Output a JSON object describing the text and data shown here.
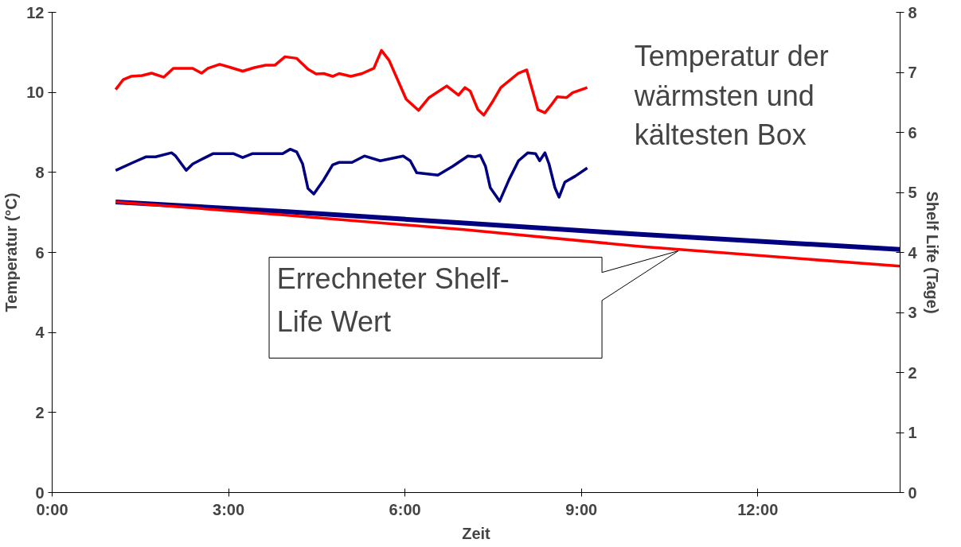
{
  "chart_data": {
    "type": "line",
    "xlabel": "Zeit",
    "ylabel": "Temperatur (°C)",
    "y2label": "Shelf Life (Tage)",
    "xlim": [
      0,
      14.42
    ],
    "xticks": [
      {
        "value": 0,
        "label": "0:00"
      },
      {
        "value": 3,
        "label": "3:00"
      },
      {
        "value": 6,
        "label": "6:00"
      },
      {
        "value": 9,
        "label": "9:00"
      },
      {
        "value": 12,
        "label": "12:00"
      }
    ],
    "ylim": [
      0,
      12
    ],
    "yticks": [
      0,
      2,
      4,
      6,
      8,
      10,
      12
    ],
    "y2lim": [
      0,
      8
    ],
    "y2ticks": [
      0,
      1,
      2,
      3,
      4,
      5,
      6,
      7,
      8
    ],
    "grid": false,
    "marker": "none",
    "line_style": "solid",
    "annotations": [
      "Temperatur der wärmsten und kältesten Box",
      "Errechneter Shelf-Life Wert"
    ],
    "series": [
      {
        "color": "#ff0000",
        "x": [
          1.08,
          1.21,
          1.34,
          1.53,
          1.69,
          1.9,
          2.06,
          2.39,
          2.54,
          2.65,
          2.85,
          3.04,
          3.24,
          3.44,
          3.63,
          3.79,
          3.96,
          4.16,
          4.35,
          4.49,
          4.62,
          4.77,
          4.88,
          5.08,
          5.27,
          5.47,
          5.6,
          5.73,
          6.02,
          6.23,
          6.41,
          6.71,
          6.91,
          7.02,
          7.11,
          7.24,
          7.34,
          7.5,
          7.63,
          7.93,
          8.07,
          8.18,
          8.26,
          8.38,
          8.49,
          8.59,
          8.75,
          8.85,
          9.1
        ],
        "values": [
          10.07,
          10.32,
          10.4,
          10.42,
          10.48,
          10.38,
          10.6,
          10.6,
          10.48,
          10.6,
          10.7,
          10.62,
          10.53,
          10.62,
          10.68,
          10.68,
          10.89,
          10.85,
          10.58,
          10.46,
          10.47,
          10.4,
          10.47,
          10.4,
          10.47,
          10.6,
          11.05,
          10.8,
          9.83,
          9.55,
          9.87,
          10.16,
          9.93,
          10.12,
          10.03,
          9.57,
          9.43,
          9.79,
          10.12,
          10.48,
          10.56,
          9.99,
          9.57,
          9.49,
          9.69,
          9.89,
          9.87,
          9.99,
          10.12
        ]
      },
      {
        "color": "#000080",
        "x": [
          1.08,
          1.38,
          1.6,
          1.76,
          2.03,
          2.1,
          2.28,
          2.39,
          2.52,
          2.74,
          3.08,
          3.24,
          3.41,
          3.92,
          4.05,
          4.16,
          4.26,
          4.35,
          4.45,
          4.62,
          4.77,
          4.88,
          5.1,
          5.31,
          5.58,
          5.97,
          6.09,
          6.2,
          6.56,
          6.81,
          7.07,
          7.2,
          7.28,
          7.37,
          7.45,
          7.61,
          7.77,
          7.93,
          8.09,
          8.22,
          8.29,
          8.38,
          8.45,
          8.55,
          8.62,
          8.72,
          8.9,
          9.1
        ],
        "values": [
          8.05,
          8.25,
          8.39,
          8.39,
          8.49,
          8.41,
          8.05,
          8.21,
          8.31,
          8.47,
          8.47,
          8.37,
          8.47,
          8.47,
          8.58,
          8.51,
          8.21,
          7.6,
          7.46,
          7.82,
          8.19,
          8.25,
          8.25,
          8.41,
          8.29,
          8.41,
          8.29,
          7.99,
          7.93,
          8.15,
          8.41,
          8.39,
          8.43,
          8.15,
          7.62,
          7.28,
          7.82,
          8.29,
          8.49,
          8.47,
          8.29,
          8.49,
          8.21,
          7.62,
          7.38,
          7.76,
          7.91,
          8.11
        ]
      },
      {
        "color": "#000080",
        "axis": "y2",
        "x": [
          1.08,
          4,
          7,
          10,
          14.42
        ],
        "values": [
          4.84,
          4.68,
          4.49,
          4.3,
          4.05
        ]
      },
      {
        "color": "#ff0000",
        "axis": "y2",
        "x": [
          1.08,
          4,
          7,
          10,
          14.42
        ],
        "values": [
          4.84,
          4.62,
          4.38,
          4.1,
          3.77
        ]
      }
    ]
  }
}
